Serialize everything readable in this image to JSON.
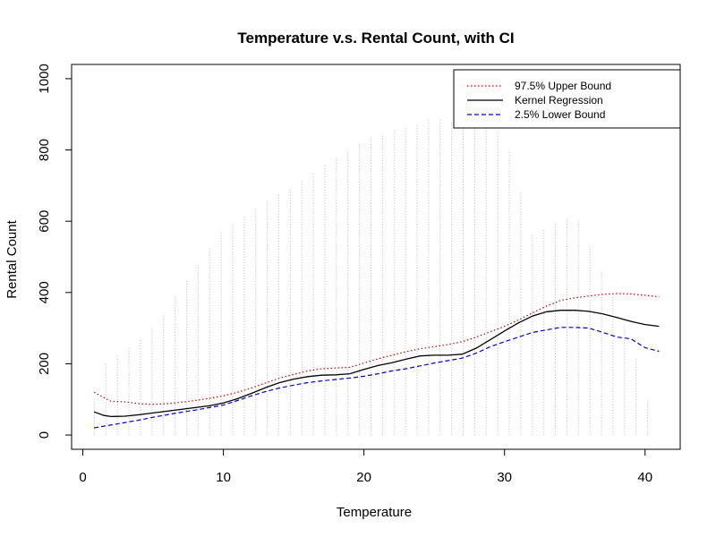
{
  "chart_data": {
    "type": "line",
    "title": "Temperature v.s. Rental Count, with CI",
    "xlabel": "Temperature",
    "ylabel": "Rental Count",
    "xlim": [
      -0.8,
      42.5
    ],
    "ylim": [
      -40,
      1040
    ],
    "x_ticks": [
      0,
      10,
      20,
      30,
      40
    ],
    "y_ticks": [
      0,
      200,
      400,
      600,
      800,
      1000
    ],
    "legend_position": "top-right",
    "grid": false,
    "series": [
      {
        "name": "97.5% Upper Bound",
        "color": "#cc0000",
        "line_style": "dotted",
        "x": [
          0.8,
          1.5,
          2,
          3,
          4,
          5,
          6,
          7,
          8,
          9,
          10,
          11,
          12,
          13,
          14,
          15,
          16,
          17,
          18,
          19,
          20,
          21,
          22,
          23,
          24,
          25,
          26,
          27,
          28,
          29,
          30,
          31,
          32,
          33,
          34,
          35,
          36,
          37,
          38,
          39,
          40,
          41
        ],
        "values": [
          120,
          105,
          95,
          93,
          88,
          86,
          88,
          92,
          97,
          103,
          110,
          120,
          132,
          146,
          160,
          170,
          180,
          186,
          188,
          190,
          202,
          214,
          224,
          234,
          242,
          248,
          254,
          262,
          275,
          290,
          305,
          323,
          343,
          362,
          378,
          385,
          390,
          395,
          397,
          396,
          392,
          388
        ]
      },
      {
        "name": "Kernel Regression",
        "color": "#000000",
        "line_style": "solid",
        "x": [
          0.8,
          1.5,
          2,
          3,
          4,
          5,
          6,
          7,
          8,
          9,
          10,
          11,
          12,
          13,
          14,
          15,
          16,
          17,
          18,
          19,
          20,
          21,
          22,
          23,
          24,
          25,
          26,
          27,
          28,
          29,
          30,
          31,
          32,
          33,
          34,
          35,
          36,
          37,
          38,
          39,
          40,
          41
        ],
        "values": [
          65,
          55,
          52,
          53,
          57,
          62,
          67,
          72,
          77,
          82,
          90,
          102,
          117,
          133,
          147,
          157,
          164,
          168,
          169,
          172,
          184,
          195,
          203,
          213,
          222,
          224,
          224,
          227,
          244,
          268,
          292,
          315,
          334,
          346,
          350,
          350,
          347,
          340,
          330,
          319,
          310,
          305
        ]
      },
      {
        "name": "2.5% Lower Bound",
        "color": "#0000cc",
        "line_style": "dashed",
        "x": [
          0.8,
          1.5,
          2,
          3,
          4,
          5,
          6,
          7,
          8,
          9,
          10,
          11,
          12,
          13,
          14,
          15,
          16,
          17,
          18,
          19,
          20,
          21,
          22,
          23,
          24,
          25,
          26,
          27,
          28,
          29,
          30,
          31,
          32,
          33,
          34,
          35,
          36,
          37,
          38,
          39,
          40,
          41
        ],
        "values": [
          20,
          25,
          28,
          35,
          42,
          50,
          57,
          64,
          70,
          77,
          84,
          97,
          110,
          122,
          132,
          140,
          147,
          152,
          156,
          160,
          165,
          172,
          180,
          186,
          194,
          202,
          209,
          216,
          230,
          248,
          262,
          275,
          288,
          295,
          302,
          302,
          300,
          288,
          275,
          270,
          245,
          235
        ]
      }
    ]
  }
}
